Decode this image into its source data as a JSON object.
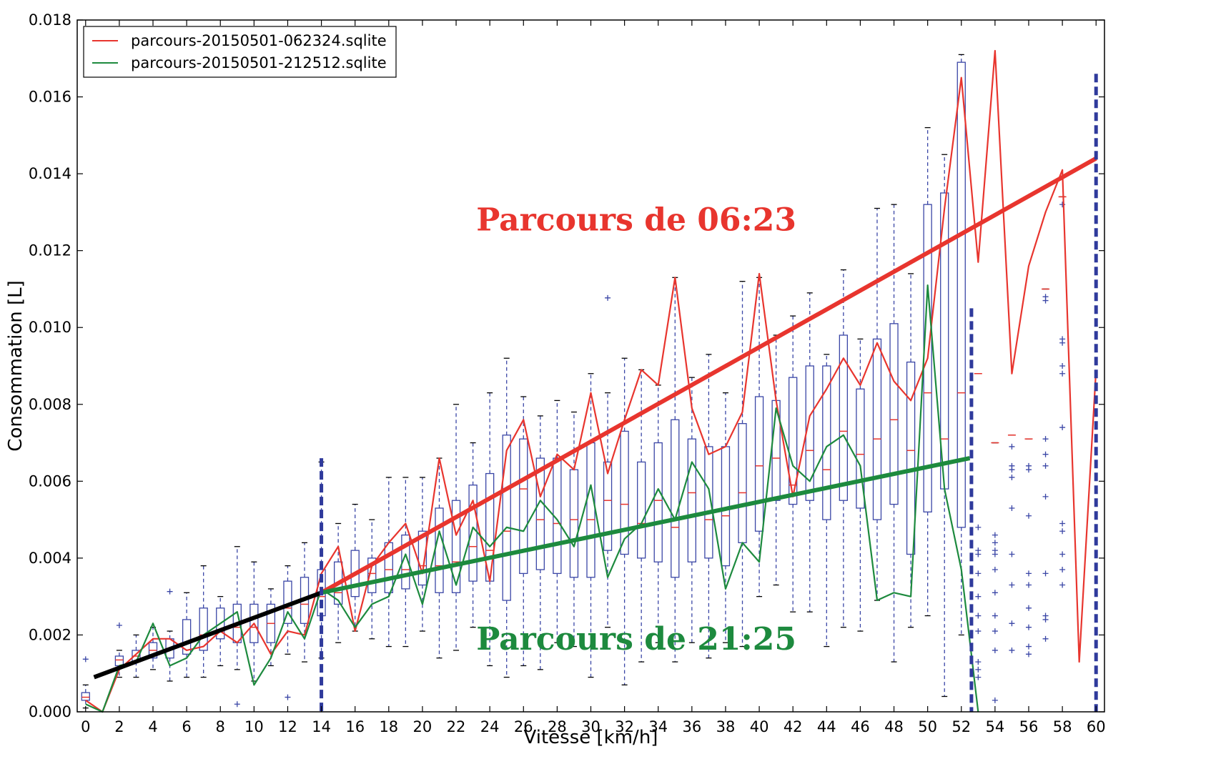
{
  "chart_data": {
    "type": "box",
    "title": "",
    "xlabel": "Vitesse [km/h]",
    "ylabel": "Consommation [L]",
    "xlim": [
      -0.5,
      60.5
    ],
    "ylim": [
      0,
      0.018
    ],
    "x_ticks": [
      0,
      2,
      4,
      6,
      8,
      10,
      12,
      14,
      16,
      18,
      20,
      22,
      24,
      26,
      28,
      30,
      32,
      34,
      36,
      38,
      40,
      42,
      44,
      46,
      48,
      50,
      52,
      54,
      56,
      58,
      60
    ],
    "y_ticks": [
      "0.000",
      "0.002",
      "0.004",
      "0.006",
      "0.008",
      "0.010",
      "0.012",
      "0.014",
      "0.016",
      "0.018"
    ],
    "grid": false,
    "legend_position": "top-left",
    "colors": {
      "box": "#3a46a6",
      "median": "#e8352e",
      "series_red": "#e8352e",
      "series_green": "#1d8a3e",
      "fit_black": "#000000",
      "divider": "#2f3a9c"
    },
    "boxes": [
      {
        "x": 0,
        "q1": 0.0003,
        "med": 0.00038,
        "q3": 0.0005,
        "lo": 0.0001,
        "hi": 0.0007,
        "out": [
          0.00137
        ]
      },
      {
        "x": 2,
        "q1": 0.0012,
        "med": 0.00135,
        "q3": 0.00145,
        "lo": 0.0009,
        "hi": 0.0016,
        "out": [
          0.00225
        ]
      },
      {
        "x": 3,
        "q1": 0.0013,
        "med": 0.00145,
        "q3": 0.0016,
        "lo": 0.0009,
        "hi": 0.002,
        "out": []
      },
      {
        "x": 4,
        "q1": 0.0014,
        "med": 0.0016,
        "q3": 0.0018,
        "lo": 0.0011,
        "hi": 0.0022,
        "out": []
      },
      {
        "x": 5,
        "q1": 0.0014,
        "med": 0.00165,
        "q3": 0.0019,
        "lo": 0.0008,
        "hi": 0.0021,
        "out": [
          0.00313
        ]
      },
      {
        "x": 6,
        "q1": 0.0015,
        "med": 0.0018,
        "q3": 0.0024,
        "lo": 0.0009,
        "hi": 0.0031,
        "out": []
      },
      {
        "x": 7,
        "q1": 0.0016,
        "med": 0.002,
        "q3": 0.0027,
        "lo": 0.0009,
        "hi": 0.0038,
        "out": []
      },
      {
        "x": 8,
        "q1": 0.0019,
        "med": 0.0021,
        "q3": 0.0027,
        "lo": 0.0012,
        "hi": 0.003,
        "out": []
      },
      {
        "x": 9,
        "q1": 0.0018,
        "med": 0.0022,
        "q3": 0.0028,
        "lo": 0.0011,
        "hi": 0.0043,
        "out": [
          0.0002
        ]
      },
      {
        "x": 10,
        "q1": 0.0018,
        "med": 0.0022,
        "q3": 0.0028,
        "lo": 0.0008,
        "hi": 0.0039,
        "out": []
      },
      {
        "x": 11,
        "q1": 0.0018,
        "med": 0.0023,
        "q3": 0.0028,
        "lo": 0.0012,
        "hi": 0.0032,
        "out": []
      },
      {
        "x": 12,
        "q1": 0.0023,
        "med": 0.0027,
        "q3": 0.0034,
        "lo": 0.0015,
        "hi": 0.0038,
        "out": [
          0.00038
        ]
      },
      {
        "x": 13,
        "q1": 0.0023,
        "med": 0.0028,
        "q3": 0.0035,
        "lo": 0.0013,
        "hi": 0.0044,
        "out": []
      },
      {
        "x": 14,
        "q1": 0.0025,
        "med": 0.003,
        "q3": 0.0037,
        "lo": 0.0014,
        "hi": 0.0065,
        "out": []
      },
      {
        "x": 15,
        "q1": 0.0028,
        "med": 0.0031,
        "q3": 0.0039,
        "lo": 0.0018,
        "hi": 0.0049,
        "out": []
      },
      {
        "x": 16,
        "q1": 0.003,
        "med": 0.0036,
        "q3": 0.0042,
        "lo": 0.0021,
        "hi": 0.0054,
        "out": []
      },
      {
        "x": 17,
        "q1": 0.0031,
        "med": 0.0036,
        "q3": 0.004,
        "lo": 0.0019,
        "hi": 0.005,
        "out": []
      },
      {
        "x": 18,
        "q1": 0.0031,
        "med": 0.0037,
        "q3": 0.0044,
        "lo": 0.0017,
        "hi": 0.0061,
        "out": []
      },
      {
        "x": 19,
        "q1": 0.0032,
        "med": 0.0037,
        "q3": 0.0046,
        "lo": 0.0017,
        "hi": 0.0061,
        "out": []
      },
      {
        "x": 20,
        "q1": 0.0033,
        "med": 0.0038,
        "q3": 0.0047,
        "lo": 0.0021,
        "hi": 0.0061,
        "out": []
      },
      {
        "x": 21,
        "q1": 0.0031,
        "med": 0.0038,
        "q3": 0.0053,
        "lo": 0.0014,
        "hi": 0.0066,
        "out": []
      },
      {
        "x": 22,
        "q1": 0.0031,
        "med": 0.0039,
        "q3": 0.0055,
        "lo": 0.0016,
        "hi": 0.008,
        "out": []
      },
      {
        "x": 23,
        "q1": 0.0034,
        "med": 0.0043,
        "q3": 0.0059,
        "lo": 0.0022,
        "hi": 0.007,
        "out": []
      },
      {
        "x": 24,
        "q1": 0.0034,
        "med": 0.0042,
        "q3": 0.0062,
        "lo": 0.0012,
        "hi": 0.0083,
        "out": []
      },
      {
        "x": 25,
        "q1": 0.0029,
        "med": 0.0047,
        "q3": 0.0072,
        "lo": 0.0009,
        "hi": 0.0092,
        "out": []
      },
      {
        "x": 26,
        "q1": 0.0036,
        "med": 0.0058,
        "q3": 0.0071,
        "lo": 0.0012,
        "hi": 0.0082,
        "out": []
      },
      {
        "x": 27,
        "q1": 0.0037,
        "med": 0.005,
        "q3": 0.0066,
        "lo": 0.0011,
        "hi": 0.0077,
        "out": []
      },
      {
        "x": 28,
        "q1": 0.0036,
        "med": 0.0049,
        "q3": 0.0066,
        "lo": 0.0018,
        "hi": 0.0081,
        "out": []
      },
      {
        "x": 29,
        "q1": 0.0035,
        "med": 0.005,
        "q3": 0.0063,
        "lo": 0.0017,
        "hi": 0.0078,
        "out": []
      },
      {
        "x": 30,
        "q1": 0.0035,
        "med": 0.005,
        "q3": 0.007,
        "lo": 0.0009,
        "hi": 0.0088,
        "out": []
      },
      {
        "x": 31,
        "q1": 0.0042,
        "med": 0.0055,
        "q3": 0.0065,
        "lo": 0.0022,
        "hi": 0.0083,
        "out": [
          0.01077
        ]
      },
      {
        "x": 32,
        "q1": 0.0041,
        "med": 0.0054,
        "q3": 0.0073,
        "lo": 0.0007,
        "hi": 0.0092,
        "out": []
      },
      {
        "x": 33,
        "q1": 0.004,
        "med": 0.0049,
        "q3": 0.0065,
        "lo": 0.0013,
        "hi": 0.0089,
        "out": []
      },
      {
        "x": 34,
        "q1": 0.0039,
        "med": 0.0055,
        "q3": 0.007,
        "lo": 0.0018,
        "hi": 0.0085,
        "out": []
      },
      {
        "x": 35,
        "q1": 0.0035,
        "med": 0.0048,
        "q3": 0.0076,
        "lo": 0.0013,
        "hi": 0.0113,
        "out": []
      },
      {
        "x": 36,
        "q1": 0.0039,
        "med": 0.0057,
        "q3": 0.0071,
        "lo": 0.0018,
        "hi": 0.0087,
        "out": []
      },
      {
        "x": 37,
        "q1": 0.004,
        "med": 0.005,
        "q3": 0.0069,
        "lo": 0.0014,
        "hi": 0.0093,
        "out": []
      },
      {
        "x": 38,
        "q1": 0.0038,
        "med": 0.0051,
        "q3": 0.0069,
        "lo": 0.0018,
        "hi": 0.0083,
        "out": []
      },
      {
        "x": 39,
        "q1": 0.0044,
        "med": 0.0057,
        "q3": 0.0075,
        "lo": 0.0017,
        "hi": 0.0112,
        "out": []
      },
      {
        "x": 40,
        "q1": 0.0047,
        "med": 0.0064,
        "q3": 0.0082,
        "lo": 0.003,
        "hi": 0.0113,
        "out": []
      },
      {
        "x": 41,
        "q1": 0.0055,
        "med": 0.0066,
        "q3": 0.0081,
        "lo": 0.0033,
        "hi": 0.0098,
        "out": []
      },
      {
        "x": 42,
        "q1": 0.0054,
        "med": 0.0059,
        "q3": 0.0087,
        "lo": 0.0026,
        "hi": 0.0103,
        "out": []
      },
      {
        "x": 43,
        "q1": 0.0055,
        "med": 0.0068,
        "q3": 0.009,
        "lo": 0.0026,
        "hi": 0.0109,
        "out": []
      },
      {
        "x": 44,
        "q1": 0.005,
        "med": 0.0063,
        "q3": 0.009,
        "lo": 0.0017,
        "hi": 0.0093,
        "out": []
      },
      {
        "x": 45,
        "q1": 0.0055,
        "med": 0.0073,
        "q3": 0.0098,
        "lo": 0.0022,
        "hi": 0.0115,
        "out": []
      },
      {
        "x": 46,
        "q1": 0.0053,
        "med": 0.0067,
        "q3": 0.0084,
        "lo": 0.0021,
        "hi": 0.0097,
        "out": []
      },
      {
        "x": 47,
        "q1": 0.005,
        "med": 0.0071,
        "q3": 0.0097,
        "lo": 0.0029,
        "hi": 0.0131,
        "out": []
      },
      {
        "x": 48,
        "q1": 0.0054,
        "med": 0.0076,
        "q3": 0.0101,
        "lo": 0.0013,
        "hi": 0.0132,
        "out": []
      },
      {
        "x": 49,
        "q1": 0.0041,
        "med": 0.0068,
        "q3": 0.0091,
        "lo": 0.0022,
        "hi": 0.0114,
        "out": []
      },
      {
        "x": 50,
        "q1": 0.0052,
        "med": 0.0083,
        "q3": 0.0132,
        "lo": 0.0025,
        "hi": 0.0152,
        "out": []
      },
      {
        "x": 51,
        "q1": 0.0058,
        "med": 0.0071,
        "q3": 0.0135,
        "lo": 0.0004,
        "hi": 0.0145,
        "out": []
      },
      {
        "x": 52,
        "q1": 0.0048,
        "med": 0.0083,
        "q3": 0.0169,
        "lo": 0.002,
        "hi": 0.0171,
        "out": []
      },
      {
        "x": 53,
        "q1": 0.0088,
        "med": 0.0088,
        "q3": 0.0088,
        "lo": 0.0088,
        "hi": 0.0088,
        "out": [
          0.0048,
          0.0042,
          0.0041,
          0.0036,
          0.003,
          0.0025,
          0.0021,
          0.0013,
          0.0011,
          0.0009
        ]
      },
      {
        "x": 54,
        "q1": 0.007,
        "med": 0.007,
        "q3": 0.007,
        "lo": 0.007,
        "hi": 0.007,
        "out": [
          0.0046,
          0.0044,
          0.0042,
          0.0041,
          0.0037,
          0.0031,
          0.0025,
          0.0021,
          0.0016,
          0.0003
        ]
      },
      {
        "x": 55,
        "q1": 0.0072,
        "med": 0.0072,
        "q3": 0.0072,
        "lo": 0.0072,
        "hi": 0.0072,
        "out": [
          0.0069,
          0.0064,
          0.0063,
          0.0061,
          0.0053,
          0.0041,
          0.0033,
          0.0023,
          0.0016
        ]
      },
      {
        "x": 56,
        "q1": 0.0071,
        "med": 0.0071,
        "q3": 0.0071,
        "lo": 0.0071,
        "hi": 0.0071,
        "out": [
          0.0064,
          0.0063,
          0.0051,
          0.0036,
          0.0033,
          0.0027,
          0.0022,
          0.0017,
          0.0015
        ]
      },
      {
        "x": 57,
        "q1": 0.011,
        "med": 0.011,
        "q3": 0.011,
        "lo": 0.011,
        "hi": 0.011,
        "out": [
          0.0108,
          0.0107,
          0.0071,
          0.0067,
          0.0064,
          0.0056,
          0.0036,
          0.0025,
          0.0024,
          0.0019
        ]
      },
      {
        "x": 58,
        "q1": 0.0134,
        "med": 0.0134,
        "q3": 0.0134,
        "lo": 0.0134,
        "hi": 0.0134,
        "out": [
          0.0132,
          0.0097,
          0.0096,
          0.009,
          0.0088,
          0.0074,
          0.0049,
          0.0047,
          0.0041,
          0.0037,
          0.0033
        ]
      }
    ],
    "series": [
      {
        "name": "parcours-20150501-062324.sqlite",
        "color": "#e8352e",
        "x": [
          0,
          1,
          2,
          3,
          4,
          5,
          6,
          7,
          8,
          9,
          10,
          11,
          12,
          13,
          14,
          15,
          16,
          17,
          18,
          19,
          20,
          21,
          22,
          23,
          24,
          25,
          26,
          27,
          28,
          29,
          30,
          31,
          32,
          33,
          34,
          35,
          36,
          37,
          38,
          39,
          40,
          41,
          42,
          43,
          44,
          45,
          46,
          47,
          48,
          49,
          50,
          51,
          52,
          53,
          54,
          55,
          56,
          57,
          58,
          59,
          60
        ],
        "y": [
          0.0003,
          0.0,
          0.0011,
          0.0015,
          0.0019,
          0.0019,
          0.0016,
          0.0017,
          0.0021,
          0.0018,
          0.0023,
          0.0015,
          0.0021,
          0.002,
          0.0036,
          0.0043,
          0.0021,
          0.0038,
          0.0044,
          0.0049,
          0.0036,
          0.0066,
          0.0046,
          0.0055,
          0.0034,
          0.0068,
          0.0076,
          0.0056,
          0.0067,
          0.0063,
          0.0083,
          0.0062,
          0.0076,
          0.0089,
          0.0085,
          0.0113,
          0.0079,
          0.0067,
          0.0069,
          0.0078,
          0.0114,
          0.0081,
          0.0056,
          0.0077,
          0.0084,
          0.0092,
          0.0085,
          0.0096,
          0.0086,
          0.0081,
          0.0092,
          0.0131,
          0.0165,
          0.0117,
          0.0172,
          0.0088,
          0.0116,
          0.013,
          0.0141,
          0.0013,
          0.0089
        ]
      },
      {
        "name": "parcours-20150501-212512.sqlite",
        "color": "#1d8a3e",
        "x": [
          0,
          1,
          2,
          3,
          4,
          5,
          6,
          7,
          8,
          9,
          10,
          11,
          12,
          13,
          14,
          15,
          16,
          17,
          18,
          19,
          20,
          21,
          22,
          23,
          24,
          25,
          26,
          27,
          28,
          29,
          30,
          31,
          32,
          33,
          34,
          35,
          36,
          37,
          38,
          39,
          40,
          41,
          42,
          43,
          44,
          45,
          46,
          47,
          48,
          49,
          50,
          51,
          52,
          53
        ],
        "y": [
          0.0002,
          0.0,
          0.0012,
          0.0013,
          0.0023,
          0.0012,
          0.0014,
          0.002,
          0.0023,
          0.0026,
          0.0007,
          0.0014,
          0.0026,
          0.0019,
          0.0032,
          0.0029,
          0.0022,
          0.0028,
          0.003,
          0.0041,
          0.0028,
          0.0047,
          0.0033,
          0.0048,
          0.0043,
          0.0048,
          0.0047,
          0.0055,
          0.005,
          0.0043,
          0.0059,
          0.0035,
          0.0045,
          0.0049,
          0.0058,
          0.005,
          0.0065,
          0.0058,
          0.0032,
          0.0044,
          0.0039,
          0.0079,
          0.0064,
          0.006,
          0.0069,
          0.0072,
          0.0064,
          0.0029,
          0.0031,
          0.003,
          0.0111,
          0.0058,
          0.0037,
          0.0
        ]
      }
    ],
    "fit_lines": [
      {
        "color": "#000000",
        "from": [
          0.5,
          0.0009
        ],
        "to": [
          14,
          0.0031
        ]
      },
      {
        "color": "#e8352e",
        "from": [
          14,
          0.0031
        ],
        "to": [
          60,
          0.0144
        ]
      },
      {
        "color": "#1d8a3e",
        "from": [
          14,
          0.0031
        ],
        "to": [
          52.5,
          0.0066
        ]
      }
    ],
    "dividers": [
      {
        "x": 14,
        "y_top": 0.0066
      },
      {
        "x": 52.6,
        "y_top": 0.0105
      },
      {
        "x": 60,
        "y_top": 0.0166
      }
    ],
    "annotations": [
      {
        "text": "Parcours de 06:23",
        "color": "#e8352e",
        "x": 32.7,
        "y": 0.0128
      },
      {
        "text": "Parcours de 21:25",
        "color": "#1d8a3e",
        "x": 32.7,
        "y": 0.0019
      }
    ]
  }
}
